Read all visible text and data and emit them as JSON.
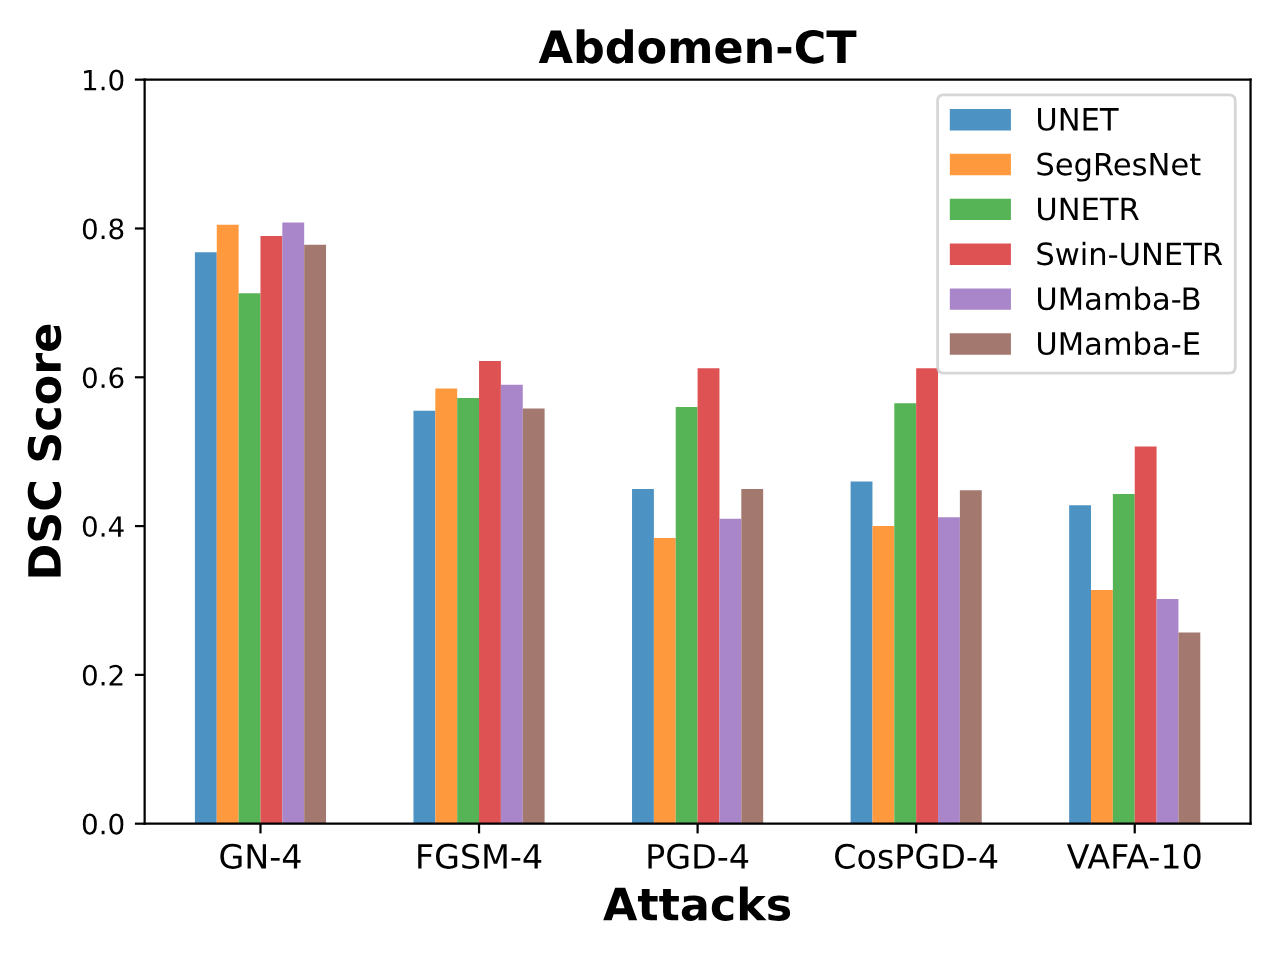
{
  "chart_data": {
    "type": "bar",
    "title": "Abdomen-CT",
    "xlabel": "Attacks",
    "ylabel": "DSC Score",
    "categories": [
      "GN-4",
      "FGSM-4",
      "PGD-4",
      "CosPGD-4",
      "VAFA-10"
    ],
    "series": [
      {
        "name": "UNET",
        "color": "#4c92c3",
        "values": [
          0.768,
          0.555,
          0.45,
          0.46,
          0.428
        ]
      },
      {
        "name": "SegResNet",
        "color": "#ff993e",
        "values": [
          0.805,
          0.585,
          0.384,
          0.4,
          0.314
        ]
      },
      {
        "name": "UNETR",
        "color": "#56b356",
        "values": [
          0.713,
          0.572,
          0.56,
          0.565,
          0.443
        ]
      },
      {
        "name": "Swin-UNETR",
        "color": "#de5253",
        "values": [
          0.79,
          0.622,
          0.612,
          0.612,
          0.507
        ]
      },
      {
        "name": "UMamba-B",
        "color": "#a985ca",
        "values": [
          0.808,
          0.59,
          0.41,
          0.412,
          0.302
        ]
      },
      {
        "name": "UMamba-E",
        "color": "#a3786f",
        "values": [
          0.778,
          0.558,
          0.45,
          0.448,
          0.257
        ]
      }
    ],
    "ylim": [
      0,
      1
    ],
    "yticks": [
      {
        "value": 0,
        "label": "0.0"
      },
      {
        "value": 0.2,
        "label": "0.2"
      },
      {
        "value": 0.4,
        "label": "0.4"
      },
      {
        "value": 0.6,
        "label": "0.6"
      },
      {
        "value": 0.8,
        "label": "0.8"
      },
      {
        "value": 1,
        "label": "1.0"
      }
    ],
    "legend": "top right",
    "grid": false
  }
}
